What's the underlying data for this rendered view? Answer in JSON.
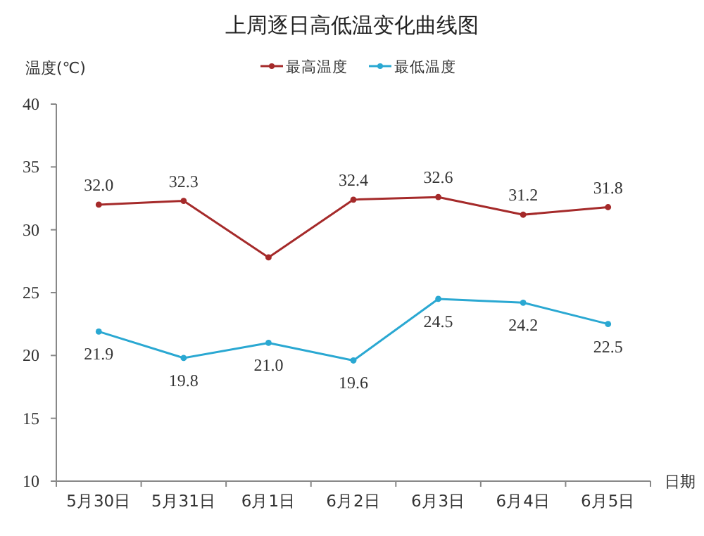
{
  "chart_data": {
    "type": "line",
    "title": "上周逐日高低温变化曲线图",
    "xlabel": "日期",
    "ylabel": "温度(℃)",
    "categories": [
      "5月30日",
      "5月31日",
      "6月1日",
      "6月2日",
      "6月3日",
      "6月4日",
      "6月5日"
    ],
    "series": [
      {
        "name": "最高温度",
        "color": "#a52a2a",
        "values": [
          32.0,
          32.3,
          27.8,
          32.4,
          32.6,
          31.2,
          31.8
        ],
        "value_labels": [
          "32.0",
          "32.3",
          null,
          "32.4",
          "32.6",
          "31.2",
          "31.8"
        ]
      },
      {
        "name": "最低温度",
        "color": "#2aa8d2",
        "values": [
          21.9,
          19.8,
          21.0,
          19.6,
          24.5,
          24.2,
          22.5
        ],
        "value_labels": [
          "21.9",
          "19.8",
          "21.0",
          "19.6",
          "24.5",
          "24.2",
          "22.5"
        ]
      }
    ],
    "ylim": [
      10,
      40
    ],
    "yticks": [
      10,
      15,
      20,
      25,
      30,
      35,
      40
    ],
    "legend": "top",
    "marker": "circle",
    "grid": false
  }
}
